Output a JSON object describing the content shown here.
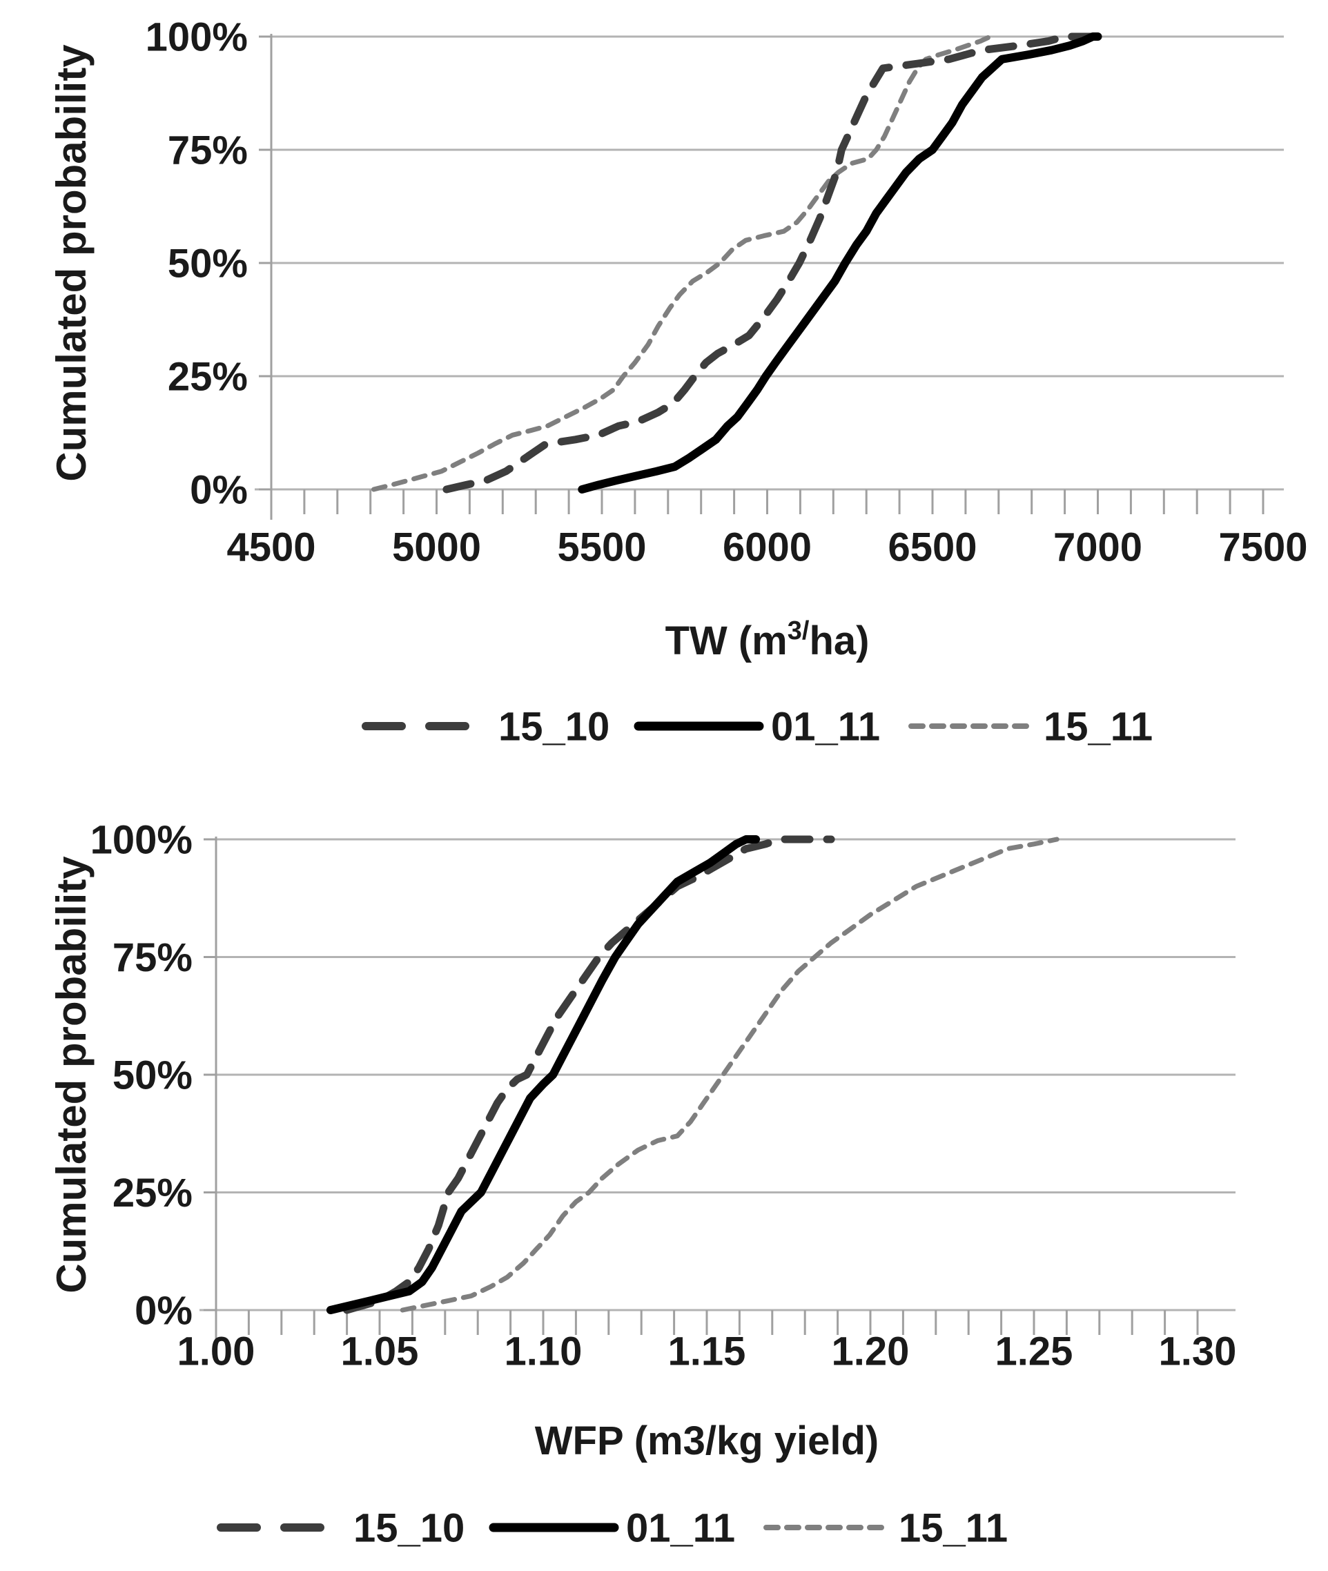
{
  "page": {
    "background": "#ffffff",
    "text_color": "#1a1a1a",
    "grid_color": "#b3b3b3",
    "axis_color": "#a0a0a0"
  },
  "chart_data": [
    {
      "type": "line",
      "title": "",
      "ylabel": "Cumulated probability",
      "xlabel": "TW (m3/ha)",
      "xlabel_rich": {
        "pre": "TW (m",
        "sup": "3/",
        "post": "ha)"
      },
      "xlim": [
        4500,
        7500
      ],
      "ylim": [
        0,
        100
      ],
      "xtick_values": [
        4500,
        5000,
        5500,
        6000,
        6500,
        7000,
        7500
      ],
      "xtick_labels": [
        "4500",
        "5000",
        "5500",
        "6000",
        "6500",
        "7000",
        "7500"
      ],
      "xtick_minor_step": 100,
      "ytick_values": [
        0,
        25,
        50,
        75,
        100
      ],
      "ytick_labels": [
        "0%",
        "25%",
        "50%",
        "75%",
        "100%"
      ],
      "grid": true,
      "legend_position": "bottom",
      "legend": [
        "15_10",
        "01_11",
        "15_11"
      ],
      "series": [
        {
          "name": "15_11",
          "color": "#7f7f7f",
          "width": 7,
          "dash": [
            17,
            13
          ],
          "points": [
            [
              4810,
              0
            ],
            [
              4865,
              1
            ],
            [
              4915,
              2
            ],
            [
              4965,
              3
            ],
            [
              5015,
              4
            ],
            [
              5070,
              6
            ],
            [
              5125,
              8
            ],
            [
              5175,
              10
            ],
            [
              5230,
              12
            ],
            [
              5285,
              13
            ],
            [
              5335,
              14
            ],
            [
              5390,
              16
            ],
            [
              5445,
              18
            ],
            [
              5495,
              20
            ],
            [
              5535,
              22
            ],
            [
              5565,
              25
            ],
            [
              5600,
              28
            ],
            [
              5640,
              32
            ],
            [
              5670,
              36
            ],
            [
              5705,
              40
            ],
            [
              5735,
              43
            ],
            [
              5775,
              46
            ],
            [
              5820,
              48
            ],
            [
              5857,
              50
            ],
            [
              5895,
              53
            ],
            [
              5935,
              55
            ],
            [
              5990,
              56
            ],
            [
              6050,
              57
            ],
            [
              6090,
              59
            ],
            [
              6125,
              62
            ],
            [
              6155,
              65
            ],
            [
              6185,
              68
            ],
            [
              6215,
              70
            ],
            [
              6255,
              72
            ],
            [
              6305,
              73
            ],
            [
              6330,
              75
            ],
            [
              6355,
              78
            ],
            [
              6380,
              82
            ],
            [
              6405,
              86
            ],
            [
              6430,
              90
            ],
            [
              6455,
              93
            ],
            [
              6480,
              95
            ],
            [
              6520,
              96
            ],
            [
              6565,
              97
            ],
            [
              6605,
              98
            ],
            [
              6645,
              99
            ],
            [
              6675,
              100
            ]
          ]
        },
        {
          "name": "15_10",
          "color": "#3d3d3d",
          "width": 11,
          "dash": [
            36,
            25
          ],
          "points": [
            [
              5030,
              0
            ],
            [
              5090,
              1
            ],
            [
              5150,
              2
            ],
            [
              5210,
              4
            ],
            [
              5250,
              6
            ],
            [
              5290,
              8
            ],
            [
              5330,
              10
            ],
            [
              5420,
              11
            ],
            [
              5490,
              12
            ],
            [
              5550,
              14
            ],
            [
              5610,
              15
            ],
            [
              5670,
              17
            ],
            [
              5715,
              19
            ],
            [
              5750,
              22
            ],
            [
              5781,
              25
            ],
            [
              5815,
              28
            ],
            [
              5850,
              30
            ],
            [
              5900,
              32
            ],
            [
              5945,
              34
            ],
            [
              5990,
              38
            ],
            [
              6030,
              42
            ],
            [
              6065,
              46
            ],
            [
              6097,
              50
            ],
            [
              6130,
              55
            ],
            [
              6160,
              60
            ],
            [
              6190,
              66
            ],
            [
              6210,
              70
            ],
            [
              6225,
              75
            ],
            [
              6250,
              79
            ],
            [
              6275,
              83
            ],
            [
              6300,
              87
            ],
            [
              6325,
              90
            ],
            [
              6350,
              93
            ],
            [
              6450,
              94
            ],
            [
              6550,
              95
            ],
            [
              6650,
              97
            ],
            [
              6760,
              98
            ],
            [
              6850,
              99
            ],
            [
              6900,
              100
            ],
            [
              6985,
              100
            ]
          ]
        },
        {
          "name": "01_11",
          "color": "#000000",
          "width": 12,
          "dash": null,
          "points": [
            [
              5440,
              0
            ],
            [
              5490,
              1
            ],
            [
              5545,
              2
            ],
            [
              5605,
              3
            ],
            [
              5665,
              4
            ],
            [
              5720,
              5
            ],
            [
              5765,
              7
            ],
            [
              5805,
              9
            ],
            [
              5845,
              11
            ],
            [
              5880,
              14
            ],
            [
              5910,
              16
            ],
            [
              5940,
              19
            ],
            [
              5970,
              22
            ],
            [
              5996,
              25
            ],
            [
              6025,
              28
            ],
            [
              6055,
              31
            ],
            [
              6085,
              34
            ],
            [
              6115,
              37
            ],
            [
              6145,
              40
            ],
            [
              6175,
              43
            ],
            [
              6205,
              46
            ],
            [
              6236,
              50
            ],
            [
              6270,
              54
            ],
            [
              6300,
              57
            ],
            [
              6330,
              61
            ],
            [
              6360,
              64
            ],
            [
              6390,
              67
            ],
            [
              6420,
              70
            ],
            [
              6460,
              73
            ],
            [
              6500,
              75
            ],
            [
              6530,
              78
            ],
            [
              6560,
              81
            ],
            [
              6590,
              85
            ],
            [
              6620,
              88
            ],
            [
              6650,
              91
            ],
            [
              6680,
              93
            ],
            [
              6710,
              95
            ],
            [
              6790,
              96
            ],
            [
              6860,
              97
            ],
            [
              6915,
              98
            ],
            [
              6955,
              99
            ],
            [
              6985,
              100
            ],
            [
              7000,
              100
            ]
          ]
        }
      ]
    },
    {
      "type": "line",
      "title": "",
      "ylabel": "Cumulated probability",
      "xlabel": "WFP (m3/kg yield)",
      "xlabel_rich": {
        "pre": "WFP (m3/kg yield)",
        "sup": "",
        "post": ""
      },
      "xlim": [
        1.0,
        1.3
      ],
      "ylim": [
        0,
        100
      ],
      "xtick_values": [
        1.0,
        1.05,
        1.1,
        1.15,
        1.2,
        1.25,
        1.3
      ],
      "xtick_labels": [
        "1.00",
        "1.05",
        "1.10",
        "1.15",
        "1.20",
        "1.25",
        "1.30"
      ],
      "xtick_minor_step": 0.01,
      "ytick_values": [
        0,
        25,
        50,
        75,
        100
      ],
      "ytick_labels": [
        "0%",
        "25%",
        "50%",
        "75%",
        "100%"
      ],
      "grid": true,
      "legend_position": "bottom",
      "legend": [
        "15_10",
        "01_11",
        "15_11"
      ],
      "series": [
        {
          "name": "15_11",
          "color": "#7f7f7f",
          "width": 7,
          "dash": [
            17,
            13
          ],
          "points": [
            [
              1.057,
              0
            ],
            [
              1.064,
              1
            ],
            [
              1.071,
              2
            ],
            [
              1.078,
              3
            ],
            [
              1.084,
              5
            ],
            [
              1.089,
              7
            ],
            [
              1.094,
              10
            ],
            [
              1.098,
              13
            ],
            [
              1.102,
              16
            ],
            [
              1.106,
              20
            ],
            [
              1.11,
              23
            ],
            [
              1.114,
              25
            ],
            [
              1.118,
              28
            ],
            [
              1.123,
              31
            ],
            [
              1.129,
              34
            ],
            [
              1.135,
              36
            ],
            [
              1.141,
              37
            ],
            [
              1.145,
              40
            ],
            [
              1.149,
              44
            ],
            [
              1.152,
              47
            ],
            [
              1.155,
              50
            ],
            [
              1.158,
              53
            ],
            [
              1.161,
              56
            ],
            [
              1.165,
              60
            ],
            [
              1.169,
              64
            ],
            [
              1.173,
              68
            ],
            [
              1.178,
              72
            ],
            [
              1.183,
              75
            ],
            [
              1.188,
              78
            ],
            [
              1.194,
              81
            ],
            [
              1.2,
              84
            ],
            [
              1.207,
              87
            ],
            [
              1.214,
              90
            ],
            [
              1.221,
              92
            ],
            [
              1.228,
              94
            ],
            [
              1.235,
              96
            ],
            [
              1.242,
              98
            ],
            [
              1.25,
              99
            ],
            [
              1.257,
              100
            ]
          ]
        },
        {
          "name": "15_10",
          "color": "#3d3d3d",
          "width": 11,
          "dash": [
            36,
            25
          ],
          "points": [
            [
              1.04,
              0
            ],
            [
              1.045,
              1
            ],
            [
              1.05,
              2
            ],
            [
              1.055,
              4
            ],
            [
              1.059,
              6
            ],
            [
              1.062,
              9
            ],
            [
              1.065,
              13
            ],
            [
              1.068,
              18
            ],
            [
              1.071,
              25
            ],
            [
              1.074,
              28
            ],
            [
              1.077,
              32
            ],
            [
              1.08,
              36
            ],
            [
              1.083,
              40
            ],
            [
              1.086,
              44
            ],
            [
              1.089,
              47
            ],
            [
              1.092,
              49
            ],
            [
              1.095,
              50
            ],
            [
              1.098,
              54
            ],
            [
              1.101,
              58
            ],
            [
              1.104,
              62
            ],
            [
              1.108,
              66
            ],
            [
              1.112,
              70
            ],
            [
              1.117,
              75
            ],
            [
              1.121,
              78
            ],
            [
              1.126,
              81
            ],
            [
              1.131,
              84
            ],
            [
              1.136,
              87
            ],
            [
              1.141,
              90
            ],
            [
              1.147,
              92
            ],
            [
              1.152,
              94
            ],
            [
              1.157,
              96
            ],
            [
              1.162,
              98
            ],
            [
              1.168,
              99
            ],
            [
              1.172,
              100
            ],
            [
              1.188,
              100
            ]
          ]
        },
        {
          "name": "01_11",
          "color": "#000000",
          "width": 12,
          "dash": null,
          "points": [
            [
              1.035,
              0
            ],
            [
              1.041,
              1
            ],
            [
              1.047,
              2
            ],
            [
              1.053,
              3
            ],
            [
              1.059,
              4
            ],
            [
              1.063,
              6
            ],
            [
              1.066,
              9
            ],
            [
              1.069,
              13
            ],
            [
              1.072,
              17
            ],
            [
              1.075,
              21
            ],
            [
              1.081,
              25
            ],
            [
              1.084,
              29
            ],
            [
              1.087,
              33
            ],
            [
              1.09,
              37
            ],
            [
              1.093,
              41
            ],
            [
              1.096,
              45
            ],
            [
              1.1,
              48
            ],
            [
              1.103,
              50
            ],
            [
              1.106,
              54
            ],
            [
              1.109,
              58
            ],
            [
              1.112,
              62
            ],
            [
              1.115,
              66
            ],
            [
              1.118,
              70
            ],
            [
              1.122,
              75
            ],
            [
              1.125,
              78
            ],
            [
              1.129,
              82
            ],
            [
              1.133,
              85
            ],
            [
              1.137,
              88
            ],
            [
              1.141,
              91
            ],
            [
              1.146,
              93
            ],
            [
              1.151,
              95
            ],
            [
              1.155,
              97
            ],
            [
              1.159,
              99
            ],
            [
              1.162,
              100
            ],
            [
              1.165,
              100
            ]
          ]
        }
      ]
    }
  ]
}
